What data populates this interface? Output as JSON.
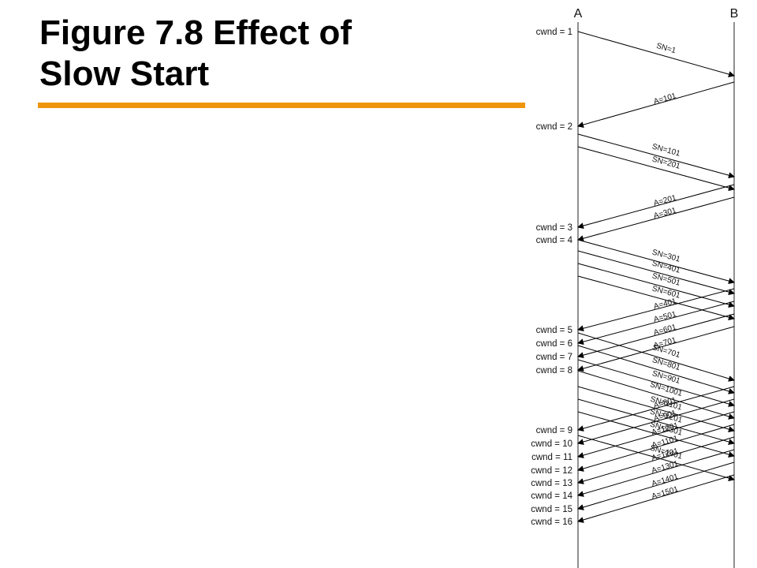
{
  "slide": {
    "title_line1": "Figure 7.8 Effect of",
    "title_line2": "Slow Start",
    "rule_color": "#f0960e"
  },
  "diagram": {
    "node_a": "A",
    "node_b": "B",
    "cwnd_labels": [
      {
        "label": "cwnd = 1",
        "t": 40
      },
      {
        "label": "cwnd = 2",
        "t": 160
      },
      {
        "label": "cwnd = 3",
        "t": 288
      },
      {
        "label": "cwnd = 4",
        "t": 304
      },
      {
        "label": "cwnd = 5",
        "t": 418
      },
      {
        "label": "cwnd = 6",
        "t": 435
      },
      {
        "label": "cwnd = 7",
        "t": 452
      },
      {
        "label": "cwnd = 8",
        "t": 469
      },
      {
        "label": "cwnd = 9",
        "t": 545
      },
      {
        "label": "cwnd = 10",
        "t": 562
      },
      {
        "label": "cwnd = 11",
        "t": 579
      },
      {
        "label": "cwnd = 12",
        "t": 596
      },
      {
        "label": "cwnd = 13",
        "t": 612
      },
      {
        "label": "cwnd = 14",
        "t": 628
      },
      {
        "label": "cwnd = 15",
        "t": 645
      },
      {
        "label": "cwnd = 16",
        "t": 661
      }
    ],
    "segments": [
      {
        "label": "SN=1",
        "t_send": 40,
        "t_arrive": 96
      },
      {
        "label": "SN=101",
        "t_send": 170,
        "t_arrive": 224
      },
      {
        "label": "SN=201",
        "t_send": 186,
        "t_arrive": 240
      },
      {
        "label": "SN=301",
        "t_send": 304,
        "t_arrive": 358
      },
      {
        "label": "SN=401",
        "t_send": 318,
        "t_arrive": 372
      },
      {
        "label": "SN=501",
        "t_send": 334,
        "t_arrive": 388
      },
      {
        "label": "SN=601",
        "t_send": 350,
        "t_arrive": 404
      },
      {
        "label": "SN=701",
        "t_send": 422,
        "t_arrive": 482
      },
      {
        "label": "SN=801",
        "t_send": 438,
        "t_arrive": 498
      },
      {
        "label": "SN=901",
        "t_send": 456,
        "t_arrive": 514
      },
      {
        "label": "SN=1001",
        "t_send": 470,
        "t_arrive": 530
      },
      {
        "label": "SN=1101",
        "t_send": 490,
        "t_arrive": 546
      },
      {
        "label": "SN=1201",
        "t_send": 506,
        "t_arrive": 562
      },
      {
        "label": "SN=1301",
        "t_send": 522,
        "t_arrive": 578
      },
      {
        "label": "SN=1401",
        "t_send": 552,
        "t_arrive": 608
      }
    ],
    "acks": [
      {
        "label": "A=101",
        "t_send": 104,
        "t_arrive": 160
      },
      {
        "label": "A=201",
        "t_send": 234,
        "t_arrive": 288
      },
      {
        "label": "A=301",
        "t_send": 250,
        "t_arrive": 304
      },
      {
        "label": "A=401",
        "t_send": 366,
        "t_arrive": 418
      },
      {
        "label": "A=501",
        "t_send": 382,
        "t_arrive": 435
      },
      {
        "label": "A=601",
        "t_send": 398,
        "t_arrive": 452
      },
      {
        "label": "A=701",
        "t_send": 414,
        "t_arrive": 469
      },
      {
        "label": "A=801",
        "t_send": 490,
        "t_arrive": 545
      },
      {
        "label": "A=901",
        "t_send": 506,
        "t_arrive": 562
      },
      {
        "label": "A=1001",
        "t_send": 522,
        "t_arrive": 579
      },
      {
        "label": "A=1101",
        "t_send": 538,
        "t_arrive": 596
      },
      {
        "label": "A=1201",
        "t_send": 554,
        "t_arrive": 612
      },
      {
        "label": "A=1301",
        "t_send": 570,
        "t_arrive": 628
      },
      {
        "label": "A=1401",
        "t_send": 586,
        "t_arrive": 645
      },
      {
        "label": "A=1501",
        "t_send": 602,
        "t_arrive": 661
      }
    ]
  }
}
